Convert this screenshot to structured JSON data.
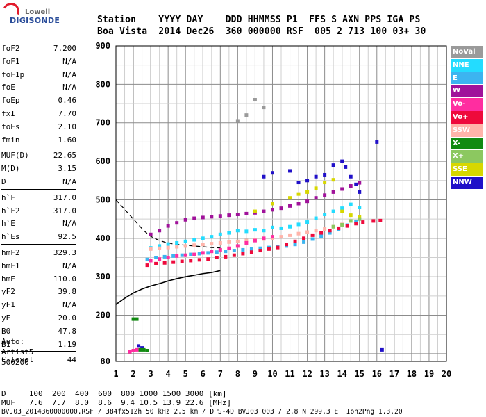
{
  "logo": {
    "line1": "Lowell",
    "line2": "DIGISONDE"
  },
  "header": {
    "row1": "Station    YYYY DAY    DDD HHMMSS P1  FFS S AXN PPS IGA PS",
    "row2": "Boa Vista  2014 Dec26  360 000000 RSF  005 2 713 100 03+ 30"
  },
  "params_groups": [
    [
      {
        "label": "foF2",
        "value": "7.200"
      },
      {
        "label": "foF1",
        "value": "N/A"
      },
      {
        "label": "foF1p",
        "value": "N/A"
      },
      {
        "label": "foE",
        "value": "N/A"
      },
      {
        "label": "foEp",
        "value": "0.46"
      },
      {
        "label": "fxI",
        "value": "7.70"
      },
      {
        "label": "foEs",
        "value": "2.10"
      },
      {
        "label": "fmin",
        "value": "1.60"
      }
    ],
    [
      {
        "label": "MUF(D)",
        "value": "22.65"
      },
      {
        "label": "M(D)",
        "value": "3.15"
      },
      {
        "label": "D",
        "value": "N/A"
      }
    ],
    [
      {
        "label": "h`F",
        "value": "317.0"
      },
      {
        "label": "h`F2",
        "value": "317.0"
      },
      {
        "label": "h`E",
        "value": "N/A"
      },
      {
        "label": "h`Es",
        "value": "92.5"
      }
    ],
    [
      {
        "label": "hmF2",
        "value": "329.3"
      },
      {
        "label": "hmF1",
        "value": "N/A"
      },
      {
        "label": "hmE",
        "value": "110.0"
      },
      {
        "label": "yF2",
        "value": "39.8"
      },
      {
        "label": "yF1",
        "value": "N/A"
      },
      {
        "label": "yE",
        "value": "20.0"
      },
      {
        "label": "B0",
        "value": "47.8"
      },
      {
        "label": "B1",
        "value": "1.19"
      }
    ],
    [
      {
        "label": "C-level",
        "value": "44"
      }
    ]
  ],
  "auto": {
    "l1": "Auto:",
    "l2": "Artist5",
    "l3": "500200"
  },
  "legend": [
    {
      "label": "NoVal",
      "color": "#9a9a9a"
    },
    {
      "label": "NNE",
      "color": "#23dcff"
    },
    {
      "label": "E",
      "color": "#3cb4f0"
    },
    {
      "label": "W",
      "color": "#a0129a"
    },
    {
      "label": "Vo-",
      "color": "#ff2da0"
    },
    {
      "label": "Vo+",
      "color": "#ee0a3c"
    },
    {
      "label": "SSW",
      "color": "#ffb4aa"
    },
    {
      "label": "X-",
      "color": "#118a11"
    },
    {
      "label": "X+",
      "color": "#8cc860"
    },
    {
      "label": "SSE",
      "color": "#d7d700"
    },
    {
      "label": "NNW",
      "color": "#2010c8"
    }
  ],
  "bottom": {
    "l1": "D     100  200  400  600  800 1000 1500 3000 [km]",
    "l2": "MUF   7.6  7.7  8.0  8.6  9.4 10.5 13.9 22.6 [MHz]",
    "l3": "BVJ03_2014360000000.RSF / 384fx512h 50 kHz 2.5 km / DPS-4D BVJ03 003 / 2.8 N 299.3 E  Ion2Png 1.3.20"
  },
  "chart_data": {
    "type": "scatter",
    "xlim": [
      1,
      20
    ],
    "ylim": [
      80,
      900
    ],
    "xticks": [
      "1",
      "2",
      "3",
      "4",
      "5",
      "6",
      "7",
      "8",
      "9",
      "10",
      "11",
      "12",
      "13",
      "14",
      "15",
      "16",
      "17",
      "18",
      "19",
      "20"
    ],
    "yticks": [
      "80",
      "200",
      "300",
      "400",
      "500",
      "600",
      "700",
      "800",
      "900"
    ],
    "grid": true,
    "series": [
      {
        "name": "E",
        "color": "#3cb4f0",
        "x": [
          2.8,
          3.3,
          3.8,
          4.3,
          4.8,
          5.3,
          5.8,
          6.3,
          6.8,
          7.3,
          7.8,
          8.3,
          8.8,
          9.3,
          9.8,
          10.3,
          10.8,
          11.3,
          11.8,
          12.3,
          12.8,
          13.3,
          13.8,
          14.3,
          14.8,
          15.0
        ],
        "y": [
          345,
          350,
          352,
          354,
          356,
          358,
          360,
          362,
          364,
          366,
          368,
          370,
          372,
          374,
          376,
          378,
          380,
          384,
          390,
          398,
          406,
          414,
          424,
          434,
          444,
          450
        ]
      },
      {
        "name": "NNE",
        "color": "#23dcff",
        "x": [
          3.0,
          3.5,
          4.0,
          4.5,
          5.0,
          5.5,
          6.0,
          6.5,
          7.0,
          7.5,
          8.0,
          8.5,
          9.0,
          9.5,
          10.0,
          10.5,
          11.0,
          11.5,
          12.0,
          12.5,
          13.0,
          13.5,
          14.0,
          14.5,
          15.0
        ],
        "y": [
          375,
          380,
          385,
          388,
          392,
          396,
          400,
          404,
          410,
          414,
          420,
          418,
          422,
          420,
          428,
          426,
          430,
          436,
          442,
          452,
          462,
          470,
          478,
          488,
          480
        ]
      },
      {
        "name": "Vo+",
        "color": "#ee0a3c",
        "x": [
          2.8,
          3.3,
          3.8,
          4.3,
          4.8,
          5.3,
          5.8,
          6.3,
          6.8,
          7.3,
          7.8,
          8.3,
          8.8,
          9.3,
          9.8,
          10.3,
          10.8,
          11.3,
          11.8,
          12.3,
          12.8,
          13.3,
          13.8,
          14.3,
          14.8,
          15.2,
          15.8,
          16.2
        ],
        "y": [
          330,
          334,
          336,
          338,
          340,
          342,
          344,
          346,
          350,
          352,
          356,
          360,
          364,
          368,
          372,
          376,
          384,
          392,
          400,
          408,
          414,
          420,
          426,
          432,
          438,
          442,
          445,
          446
        ]
      },
      {
        "name": "W",
        "color": "#a0129a",
        "x": [
          3.0,
          3.5,
          4.0,
          4.5,
          5.0,
          5.5,
          6.0,
          6.5,
          7.0,
          7.5,
          8.0,
          8.5,
          9.0,
          9.5,
          10.0,
          10.5,
          11.0,
          11.5,
          12.0,
          12.5,
          13.0,
          13.5,
          14.0,
          14.5,
          15.0
        ],
        "y": [
          410,
          420,
          432,
          440,
          448,
          452,
          454,
          456,
          458,
          460,
          462,
          464,
          466,
          470,
          474,
          478,
          484,
          490,
          496,
          505,
          512,
          520,
          528,
          536,
          544
        ]
      },
      {
        "name": "SSW",
        "color": "#ffb4aa",
        "x": [
          3.0,
          3.5,
          4.0,
          4.5,
          5.0,
          5.5,
          6.0,
          6.5,
          7.0,
          7.5,
          8.0,
          8.5,
          9.0,
          9.5,
          10.0,
          10.5,
          11.0,
          11.5,
          12.0,
          12.5,
          13.0,
          13.5,
          14.0
        ],
        "y": [
          372,
          374,
          376,
          378,
          380,
          382,
          384,
          386,
          388,
          390,
          392,
          394,
          396,
          398,
          400,
          404,
          408,
          412,
          416,
          420,
          424,
          430,
          436
        ]
      },
      {
        "name": "NNW",
        "color": "#2010c8",
        "x": [
          2.3,
          2.5,
          9.5,
          10.0,
          11.0,
          11.5,
          12.0,
          12.5,
          13.0,
          13.5,
          14.0,
          14.2,
          14.5,
          14.8,
          15.0,
          16.0,
          16.3
        ],
        "y": [
          120,
          115,
          560,
          570,
          575,
          545,
          550,
          560,
          565,
          590,
          600,
          585,
          560,
          540,
          520,
          650,
          110
        ]
      },
      {
        "name": "Vo-",
        "color": "#ff2da0",
        "x": [
          1.8,
          2.0,
          2.2,
          3.0,
          3.5,
          4.0,
          4.5,
          5.0,
          5.5,
          6.0,
          6.5,
          7.0,
          7.5,
          8.0,
          8.5,
          9.0,
          9.5,
          10.0
        ],
        "y": [
          105,
          108,
          110,
          342,
          346,
          350,
          354,
          356,
          358,
          362,
          366,
          370,
          374,
          380,
          388,
          394,
          400,
          404
        ]
      },
      {
        "name": "X-",
        "color": "#118a11",
        "x": [
          2.0,
          2.2,
          2.4,
          2.6,
          2.8
        ],
        "y": [
          190,
          190,
          110,
          110,
          108
        ]
      },
      {
        "name": "SSE",
        "color": "#d7d700",
        "x": [
          9.0,
          10.0,
          11.0,
          11.5,
          12.0,
          12.5,
          13.0,
          13.5,
          14.0,
          14.5,
          15.0
        ],
        "y": [
          470,
          490,
          505,
          515,
          520,
          530,
          545,
          552,
          470,
          460,
          455
        ]
      },
      {
        "name": "X+",
        "color": "#8cc860",
        "x": [
          13.5,
          14.0,
          14.5,
          15.0
        ],
        "y": [
          430,
          435,
          445,
          450
        ]
      },
      {
        "name": "NoVal",
        "color": "#9a9a9a",
        "x": [
          8.0,
          8.5,
          9.0,
          9.5
        ],
        "y": [
          705,
          720,
          760,
          740
        ]
      }
    ],
    "profile_line": {
      "x": [
        1.0,
        1.5,
        2.0,
        2.5,
        3.0,
        3.5,
        4.0,
        4.5,
        5.0,
        5.5,
        6.0,
        6.5,
        7.0
      ],
      "y": [
        228,
        244,
        258,
        268,
        276,
        282,
        289,
        295,
        300,
        304,
        308,
        311,
        316
      ]
    },
    "dashed_line": {
      "x": [
        1.0,
        1.4,
        1.8,
        2.2,
        2.6,
        3.0,
        3.4,
        3.8,
        4.2,
        4.6,
        5.0,
        5.5,
        6.0,
        6.5,
        7.0
      ],
      "y": [
        500,
        480,
        460,
        440,
        420,
        405,
        396,
        390,
        386,
        384,
        382,
        380,
        378,
        376,
        375
      ]
    }
  }
}
